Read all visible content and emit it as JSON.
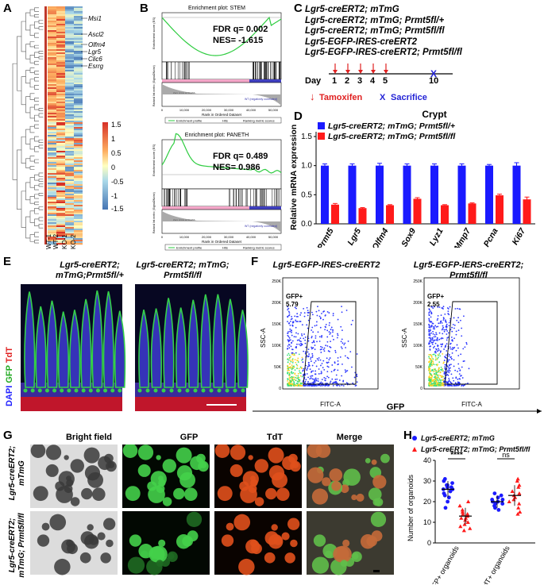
{
  "panels": {
    "A": "A",
    "B": "B",
    "C": "C",
    "D": "D",
    "E": "E",
    "F": "F",
    "G": "G",
    "H": "H"
  },
  "heatmap": {
    "genes": [
      "Msi1",
      "Ascl2",
      "Olfm4",
      "Lgr5",
      "Clic6",
      "Esrrg"
    ],
    "columns": [
      "WT-1",
      "WT-2",
      "KO-1",
      "KO-2"
    ],
    "scale_ticks": [
      "1.5",
      "1",
      "0.5",
      "0",
      "-0.5",
      "-1",
      "-1.5"
    ]
  },
  "gsea": [
    {
      "title": "Enrichment plot: STEM",
      "fdr": "FDR q= 0.002",
      "nes": "NES= -1.615",
      "ylabel": "Enrichment score (ES)",
      "xlabel": "Rank in Ordered Dataset",
      "ylabel2": "Ranked list metric (Signal2Noise)",
      "zero_cross": "Zero cross at 50,056",
      "corr_label": "WT (negatively correlated)",
      "legend": [
        "Enrichment profile",
        "Hits",
        "Ranking metric scores"
      ],
      "xticks": [
        "0",
        "10,000",
        "20,000",
        "30,000",
        "40,000",
        "50,000"
      ]
    },
    {
      "title": "Enrichment plot: PANETH",
      "fdr": "FDR q= 0.489",
      "nes": "NES= 0.986",
      "ylabel": "Enrichment score (ES)",
      "xlabel": "Rank in Ordered Dataset",
      "ylabel2": "Ranked list metric (Signal2Noise)",
      "zero_cross": "Zero cross at 50,056",
      "corr_label": "WT (negatively correlated)",
      "legend": [
        "Enrichment profile",
        "Hits",
        "Ranking metric scores"
      ],
      "xticks": [
        "0",
        "10,000",
        "20,000",
        "30,000",
        "40,000",
        "50,000"
      ]
    }
  ],
  "mouse_lines": [
    "Lgr5-creERT2; mTmG",
    "Lgr5-creERT2; mTmG; Prmt5fl/+",
    "Lgr5-creERT2; mTmG; Prmt5fl/fl",
    "Lgr5-EGFP-IRES-creERT2",
    "Lgr5-EGFP-IRES-creERT2; Prmt5fl/fl"
  ],
  "timeline": {
    "day_label": "Day",
    "days": [
      "1",
      "2",
      "3",
      "4",
      "5",
      "10"
    ],
    "tamoxifen": "Tamoxifen",
    "sacrifice": "Sacrifice",
    "x_mark": "X"
  },
  "chart_data": {
    "type": "bar",
    "title": "Crypt",
    "ylabel": "Relative mRNA expression",
    "categories": [
      "Prmt5",
      "Lgr5",
      "Olfm4",
      "Sox9",
      "Lyz1",
      "Mmp7",
      "Pcna",
      "Ki67"
    ],
    "ylim": [
      0,
      1.5
    ],
    "yticks": [
      "0.0",
      "0.5",
      "1.0",
      "1.5"
    ],
    "series": [
      {
        "name": "Lgr5-creERT2; mTmG; Prmt5fl/+",
        "color": "#1a1aff",
        "values": [
          1.0,
          1.0,
          1.0,
          1.0,
          1.0,
          1.0,
          1.0,
          1.0
        ],
        "errors": [
          0.03,
          0.03,
          0.04,
          0.03,
          0.03,
          0.03,
          0.02,
          0.05
        ]
      },
      {
        "name": "Lgr5-creERT2; mTmG; Prmt5fl/fl",
        "color": "#ff1a1a",
        "values": [
          0.33,
          0.27,
          0.32,
          0.43,
          0.32,
          0.35,
          0.49,
          0.42
        ],
        "errors": [
          0.02,
          0.01,
          0.01,
          0.02,
          0.01,
          0.01,
          0.02,
          0.04
        ]
      }
    ],
    "h_chart": {
      "type": "scatter",
      "ylabel": "Number of organoids",
      "ylim": [
        0,
        40
      ],
      "yticks": [
        "0",
        "10",
        "20",
        "30",
        "40"
      ],
      "categories": [
        "GFP+ organoids",
        "TdT+ organoids"
      ],
      "legend": [
        "Lgr5-creERT2; mTmG",
        "Lgr5-creERT2; mTmG; Prmt5fl/fl"
      ],
      "sig": [
        "****",
        "ns"
      ],
      "groups": [
        {
          "name": "GFP+ mTmG",
          "mean": 26,
          "sd": 4,
          "values": [
            31,
            30,
            29,
            28,
            28,
            27,
            27,
            26,
            26,
            25,
            24,
            23,
            22,
            20,
            17
          ]
        },
        {
          "name": "GFP+ Prmt5fl/fl",
          "mean": 13,
          "sd": 4,
          "values": [
            20,
            18,
            16,
            15,
            14,
            14,
            13,
            12,
            12,
            11,
            10,
            9,
            8,
            7,
            6
          ]
        },
        {
          "name": "TdT+ mTmG",
          "mean": 20,
          "sd": 3,
          "values": [
            24,
            23,
            22,
            21,
            21,
            20,
            20,
            19,
            19,
            18,
            17,
            16
          ]
        },
        {
          "name": "TdT+ Prmt5fl/fl",
          "mean": 23,
          "sd": 5,
          "values": [
            31,
            30,
            28,
            27,
            25,
            24,
            23,
            22,
            21,
            20,
            19,
            17,
            15,
            14
          ]
        }
      ]
    }
  },
  "E": {
    "left_title": "Lgr5-creERT2; mTmG;Prmt5fl/+",
    "right_title": "Lgr5-creERT2; mTmG; Prmt5fl/fl",
    "stain_dapi": "DAPI",
    "stain_gfp": "GFP",
    "stain_tdt": "TdT"
  },
  "F": {
    "left_title": "Lgr5-EGFP-IRES-creERT2",
    "right_title": "Lgr5-EGFP-IERS-creERT2; Prmt5fl/fl",
    "left_gate": "GFP+",
    "left_pct": "5.79",
    "right_gate": "GFP+",
    "right_pct": "2.55",
    "ylabel": "SSC-A",
    "xlabel": "FITC-A",
    "axis_title": "GFP",
    "yticks": [
      "250K",
      "200K",
      "150K",
      "100K",
      "50K",
      "0"
    ]
  },
  "G": {
    "cols": [
      "Bright field",
      "GFP",
      "TdT",
      "Merge"
    ],
    "rows": [
      "Lgr5-creERT2; mTmG",
      "Lgr5-creERT2; mTmG; Prmt5fl/fl"
    ]
  }
}
